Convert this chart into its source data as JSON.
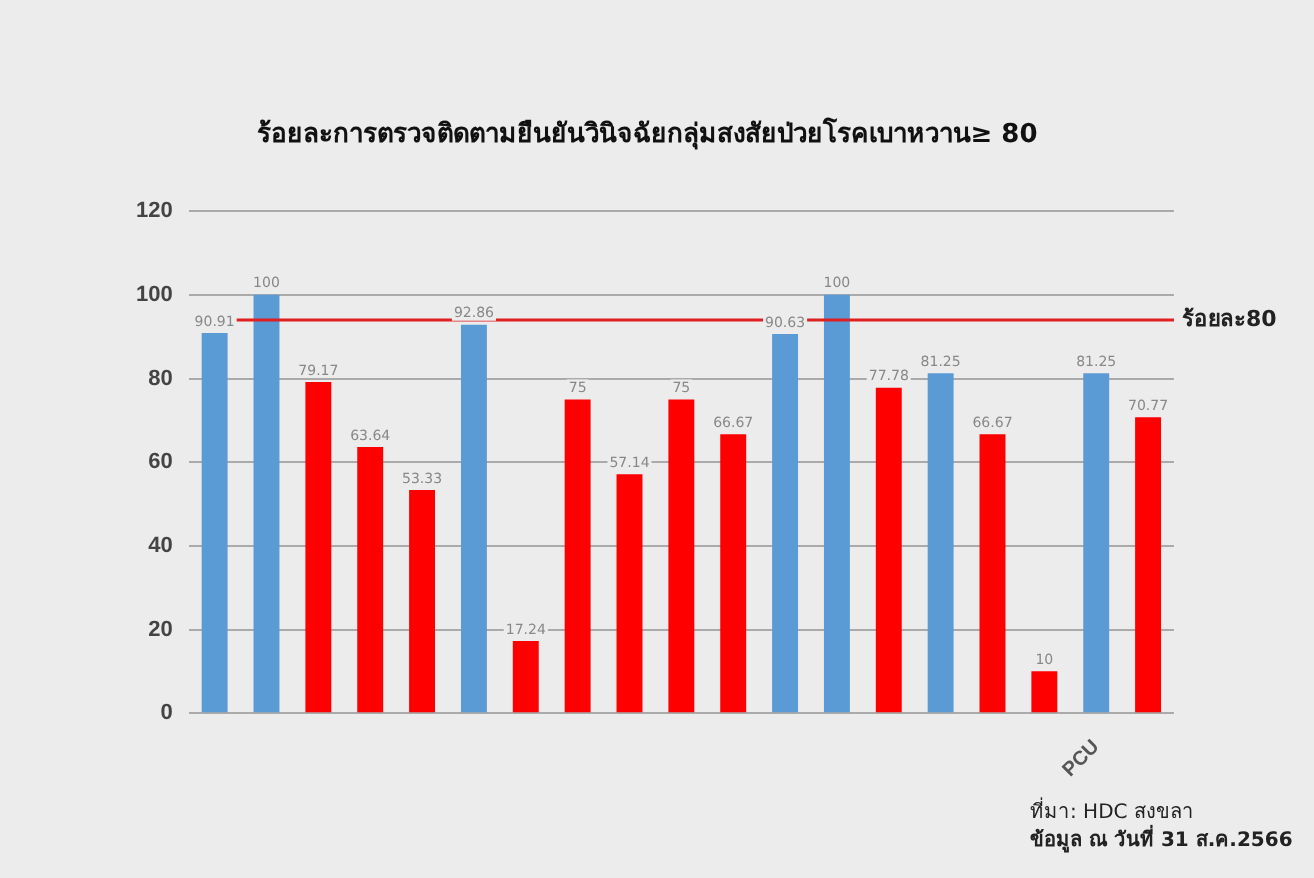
{
  "chart_data": {
    "type": "bar",
    "title": "ร้อยละการตรวจติดตามยืนยันวินิจฉัยกลุ่มสงสัยป่วยโรคเบาหวาน≥ 80",
    "categories": [
      null,
      null,
      null,
      null,
      null,
      null,
      null,
      null,
      null,
      null,
      null,
      null,
      null,
      null,
      null,
      null,
      null,
      "PCU",
      null
    ],
    "values": [
      90.91,
      100,
      79.17,
      63.64,
      53.33,
      92.86,
      17.24,
      75,
      57.14,
      75,
      66.67,
      90.63,
      100,
      77.78,
      81.25,
      66.67,
      10,
      81.25,
      70.77
    ],
    "colors": [
      "#5b9bd5",
      "#5b9bd5",
      "#ff0000",
      "#ff0000",
      "#ff0000",
      "#5b9bd5",
      "#ff0000",
      "#ff0000",
      "#ff0000",
      "#ff0000",
      "#ff0000",
      "#5b9bd5",
      "#5b9bd5",
      "#ff0000",
      "#5b9bd5",
      "#ff0000",
      "#ff0000",
      "#5b9bd5",
      "#ff0000"
    ],
    "ylim": [
      0,
      120
    ],
    "yticks": [
      0,
      20,
      40,
      60,
      80,
      100,
      120
    ],
    "grid": "y",
    "legend": false,
    "data_labels": true,
    "ref_lines": [
      {
        "axis": "y",
        "value": 94,
        "label": "ร้อยละ80",
        "color": "#e02020"
      }
    ],
    "annotations": [
      "ที่มา: HDC สงขลา",
      "ข้อมูล ณ วันที่ 31 ส.ค.2566"
    ]
  }
}
